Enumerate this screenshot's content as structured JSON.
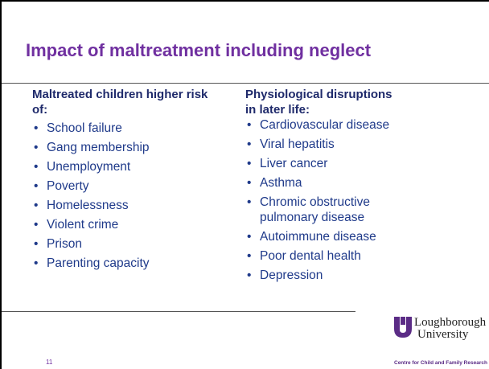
{
  "title": "Impact of maltreatment including neglect",
  "left": {
    "heading": "Maltreated children higher risk of:",
    "items": [
      "School failure",
      "Gang membership",
      "Unemployment",
      "Poverty",
      "Homelessness",
      "Violent crime",
      "Prison",
      "Parenting capacity"
    ]
  },
  "right": {
    "heading": "Physiological disruptions in later life:",
    "items": [
      "Cardiovascular disease",
      "Viral hepatitis",
      "Liver cancer",
      "Asthma",
      "Chromic obstructive pulmonary disease",
      "Autoimmune disease",
      "Poor dental health",
      "Depression"
    ]
  },
  "logo": {
    "line1": "Loughborough",
    "line2": "University",
    "tagline": "Centre for Child and Family Research"
  },
  "page_number": "11"
}
